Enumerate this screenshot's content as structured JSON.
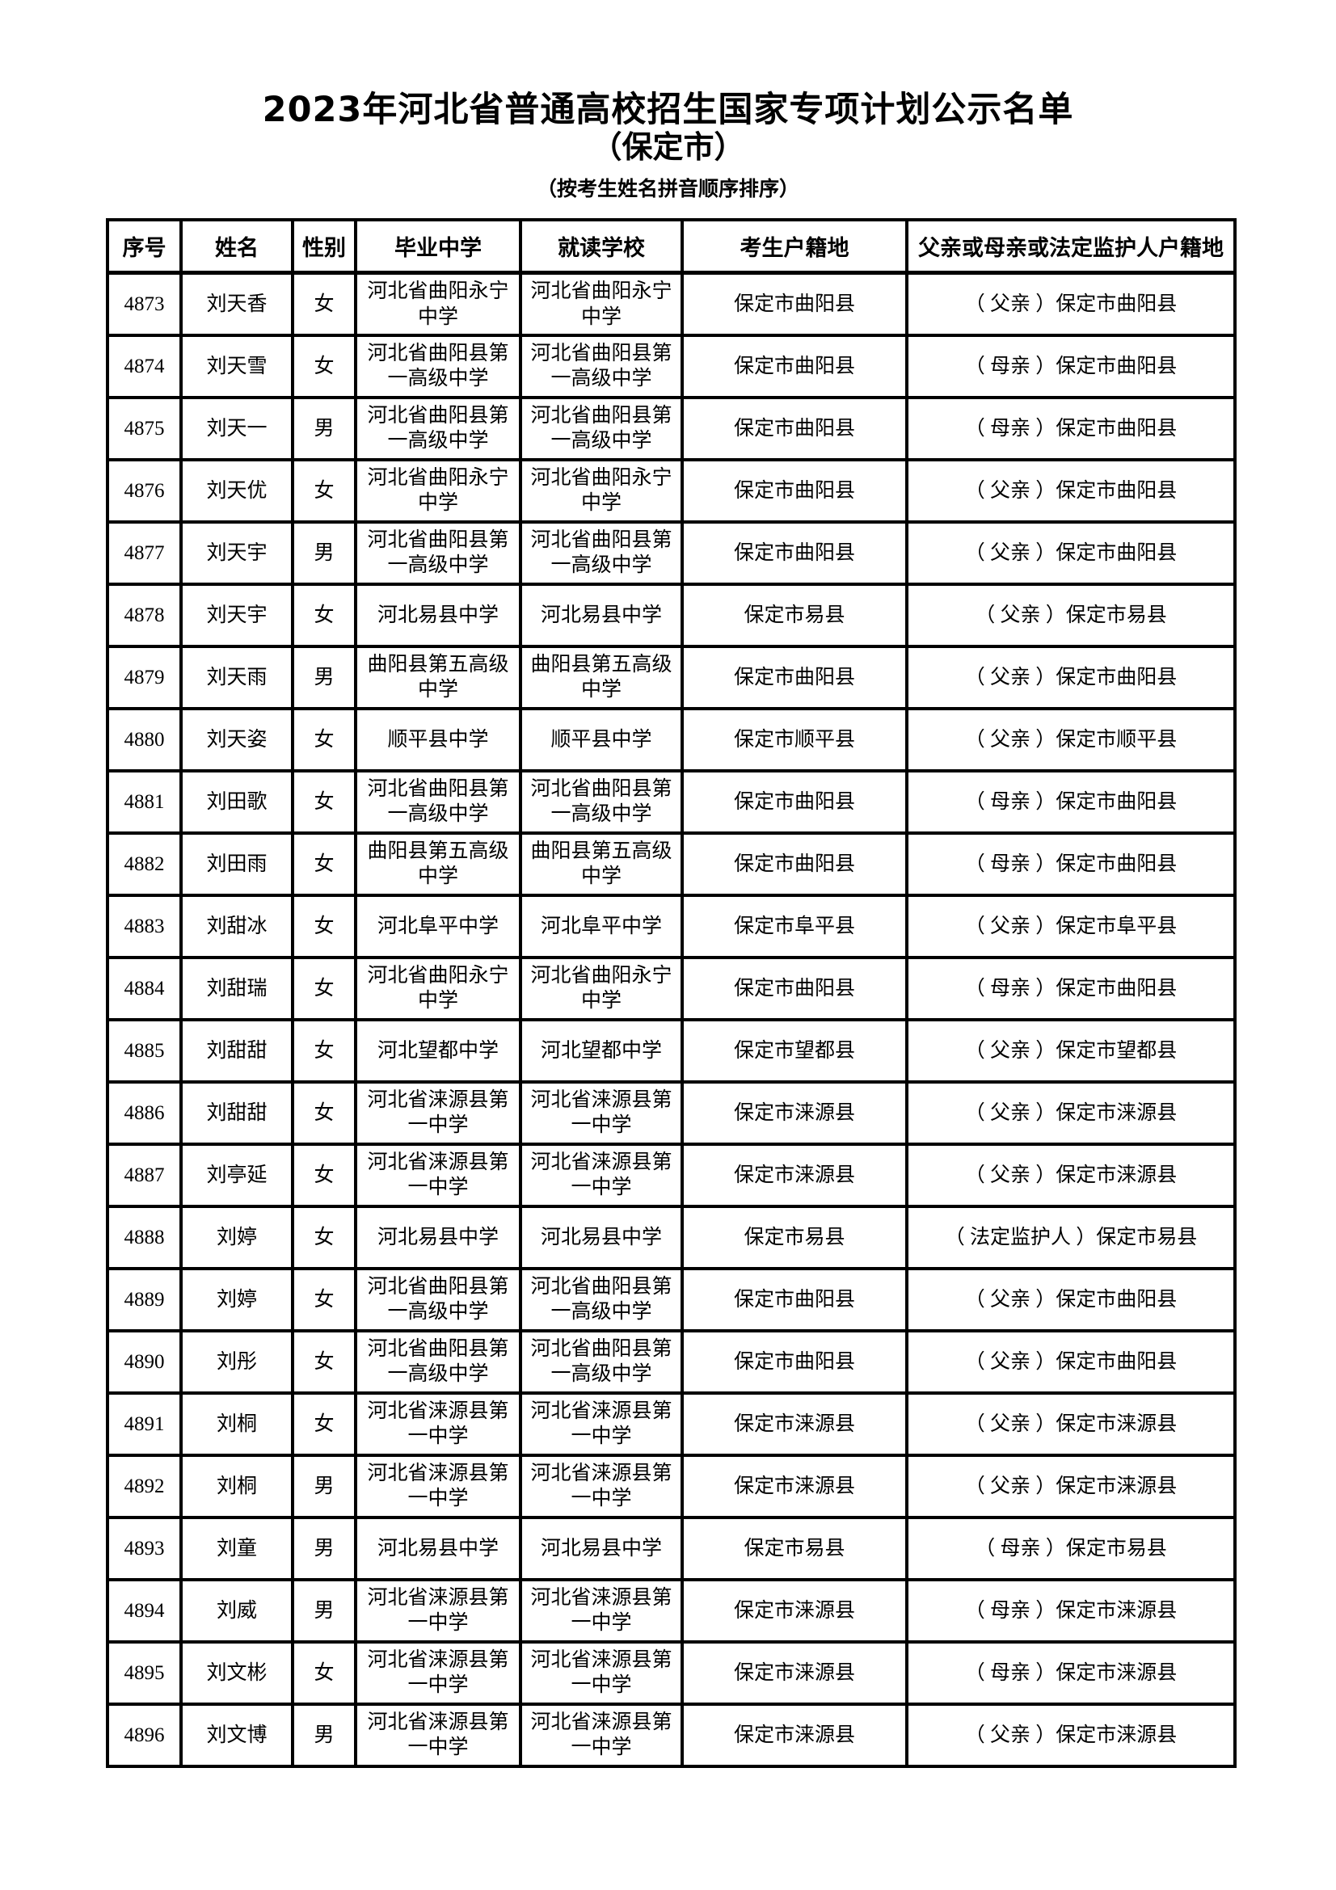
{
  "page": {
    "title": "2023年河北省普通高校招生国家专项计划公示名单",
    "subtitle": "（保定市）",
    "note": "（按考生姓名拼音顺序排序）"
  },
  "table": {
    "headers": [
      "序号",
      "姓名",
      "性别",
      "毕业中学",
      "就读学校",
      "考生户籍地",
      "父亲或母亲或法定监护人户籍地"
    ],
    "rows": [
      [
        "4873",
        "刘天香",
        "女",
        "河北省曲阳永宁中学",
        "河北省曲阳永宁中学",
        "保定市曲阳县",
        "（ 父亲 ）保定市曲阳县"
      ],
      [
        "4874",
        "刘天雪",
        "女",
        "河北省曲阳县第一高级中学",
        "河北省曲阳县第一高级中学",
        "保定市曲阳县",
        "（ 母亲 ）保定市曲阳县"
      ],
      [
        "4875",
        "刘天一",
        "男",
        "河北省曲阳县第一高级中学",
        "河北省曲阳县第一高级中学",
        "保定市曲阳县",
        "（ 母亲 ）保定市曲阳县"
      ],
      [
        "4876",
        "刘天优",
        "女",
        "河北省曲阳永宁中学",
        "河北省曲阳永宁中学",
        "保定市曲阳县",
        "（ 父亲 ）保定市曲阳县"
      ],
      [
        "4877",
        "刘天宇",
        "男",
        "河北省曲阳县第一高级中学",
        "河北省曲阳县第一高级中学",
        "保定市曲阳县",
        "（ 父亲 ）保定市曲阳县"
      ],
      [
        "4878",
        "刘天宇",
        "女",
        "河北易县中学",
        "河北易县中学",
        "保定市易县",
        "（ 父亲 ）保定市易县"
      ],
      [
        "4879",
        "刘天雨",
        "男",
        "曲阳县第五高级中学",
        "曲阳县第五高级中学",
        "保定市曲阳县",
        "（ 父亲 ）保定市曲阳县"
      ],
      [
        "4880",
        "刘天姿",
        "女",
        "顺平县中学",
        "顺平县中学",
        "保定市顺平县",
        "（ 父亲 ）保定市顺平县"
      ],
      [
        "4881",
        "刘田歌",
        "女",
        "河北省曲阳县第一高级中学",
        "河北省曲阳县第一高级中学",
        "保定市曲阳县",
        "（ 母亲 ）保定市曲阳县"
      ],
      [
        "4882",
        "刘田雨",
        "女",
        "曲阳县第五高级中学",
        "曲阳县第五高级中学",
        "保定市曲阳县",
        "（ 母亲 ）保定市曲阳县"
      ],
      [
        "4883",
        "刘甜冰",
        "女",
        "河北阜平中学",
        "河北阜平中学",
        "保定市阜平县",
        "（ 父亲 ）保定市阜平县"
      ],
      [
        "4884",
        "刘甜瑞",
        "女",
        "河北省曲阳永宁中学",
        "河北省曲阳永宁中学",
        "保定市曲阳县",
        "（ 母亲 ）保定市曲阳县"
      ],
      [
        "4885",
        "刘甜甜",
        "女",
        "河北望都中学",
        "河北望都中学",
        "保定市望都县",
        "（ 父亲 ）保定市望都县"
      ],
      [
        "4886",
        "刘甜甜",
        "女",
        "河北省涞源县第一中学",
        "河北省涞源县第一中学",
        "保定市涞源县",
        "（ 父亲 ）保定市涞源县"
      ],
      [
        "4887",
        "刘亭延",
        "女",
        "河北省涞源县第一中学",
        "河北省涞源县第一中学",
        "保定市涞源县",
        "（ 父亲 ）保定市涞源县"
      ],
      [
        "4888",
        "刘婷",
        "女",
        "河北易县中学",
        "河北易县中学",
        "保定市易县",
        "（ 法定监护人 ）保定市易县"
      ],
      [
        "4889",
        "刘婷",
        "女",
        "河北省曲阳县第一高级中学",
        "河北省曲阳县第一高级中学",
        "保定市曲阳县",
        "（ 父亲 ）保定市曲阳县"
      ],
      [
        "4890",
        "刘彤",
        "女",
        "河北省曲阳县第一高级中学",
        "河北省曲阳县第一高级中学",
        "保定市曲阳县",
        "（ 父亲 ）保定市曲阳县"
      ],
      [
        "4891",
        "刘桐",
        "女",
        "河北省涞源县第一中学",
        "河北省涞源县第一中学",
        "保定市涞源县",
        "（ 父亲 ）保定市涞源县"
      ],
      [
        "4892",
        "刘桐",
        "男",
        "河北省涞源县第一中学",
        "河北省涞源县第一中学",
        "保定市涞源县",
        "（ 父亲 ）保定市涞源县"
      ],
      [
        "4893",
        "刘童",
        "男",
        "河北易县中学",
        "河北易县中学",
        "保定市易县",
        "（ 母亲 ）保定市易县"
      ],
      [
        "4894",
        "刘威",
        "男",
        "河北省涞源县第一中学",
        "河北省涞源县第一中学",
        "保定市涞源县",
        "（ 母亲 ）保定市涞源县"
      ],
      [
        "4895",
        "刘文彬",
        "女",
        "河北省涞源县第一中学",
        "河北省涞源县第一中学",
        "保定市涞源县",
        "（ 母亲 ）保定市涞源县"
      ],
      [
        "4896",
        "刘文博",
        "男",
        "河北省涞源县第一中学",
        "河北省涞源县第一中学",
        "保定市涞源县",
        "（ 父亲 ）保定市涞源县"
      ]
    ],
    "cell_names": [
      "seq-cell",
      "name-cell",
      "gender-cell",
      "graduate-school-cell",
      "attend-school-cell",
      "residence-cell",
      "guardian-residence-cell"
    ]
  },
  "colors": {
    "text": "#000000",
    "background": "#ffffff",
    "border": "#000000"
  }
}
